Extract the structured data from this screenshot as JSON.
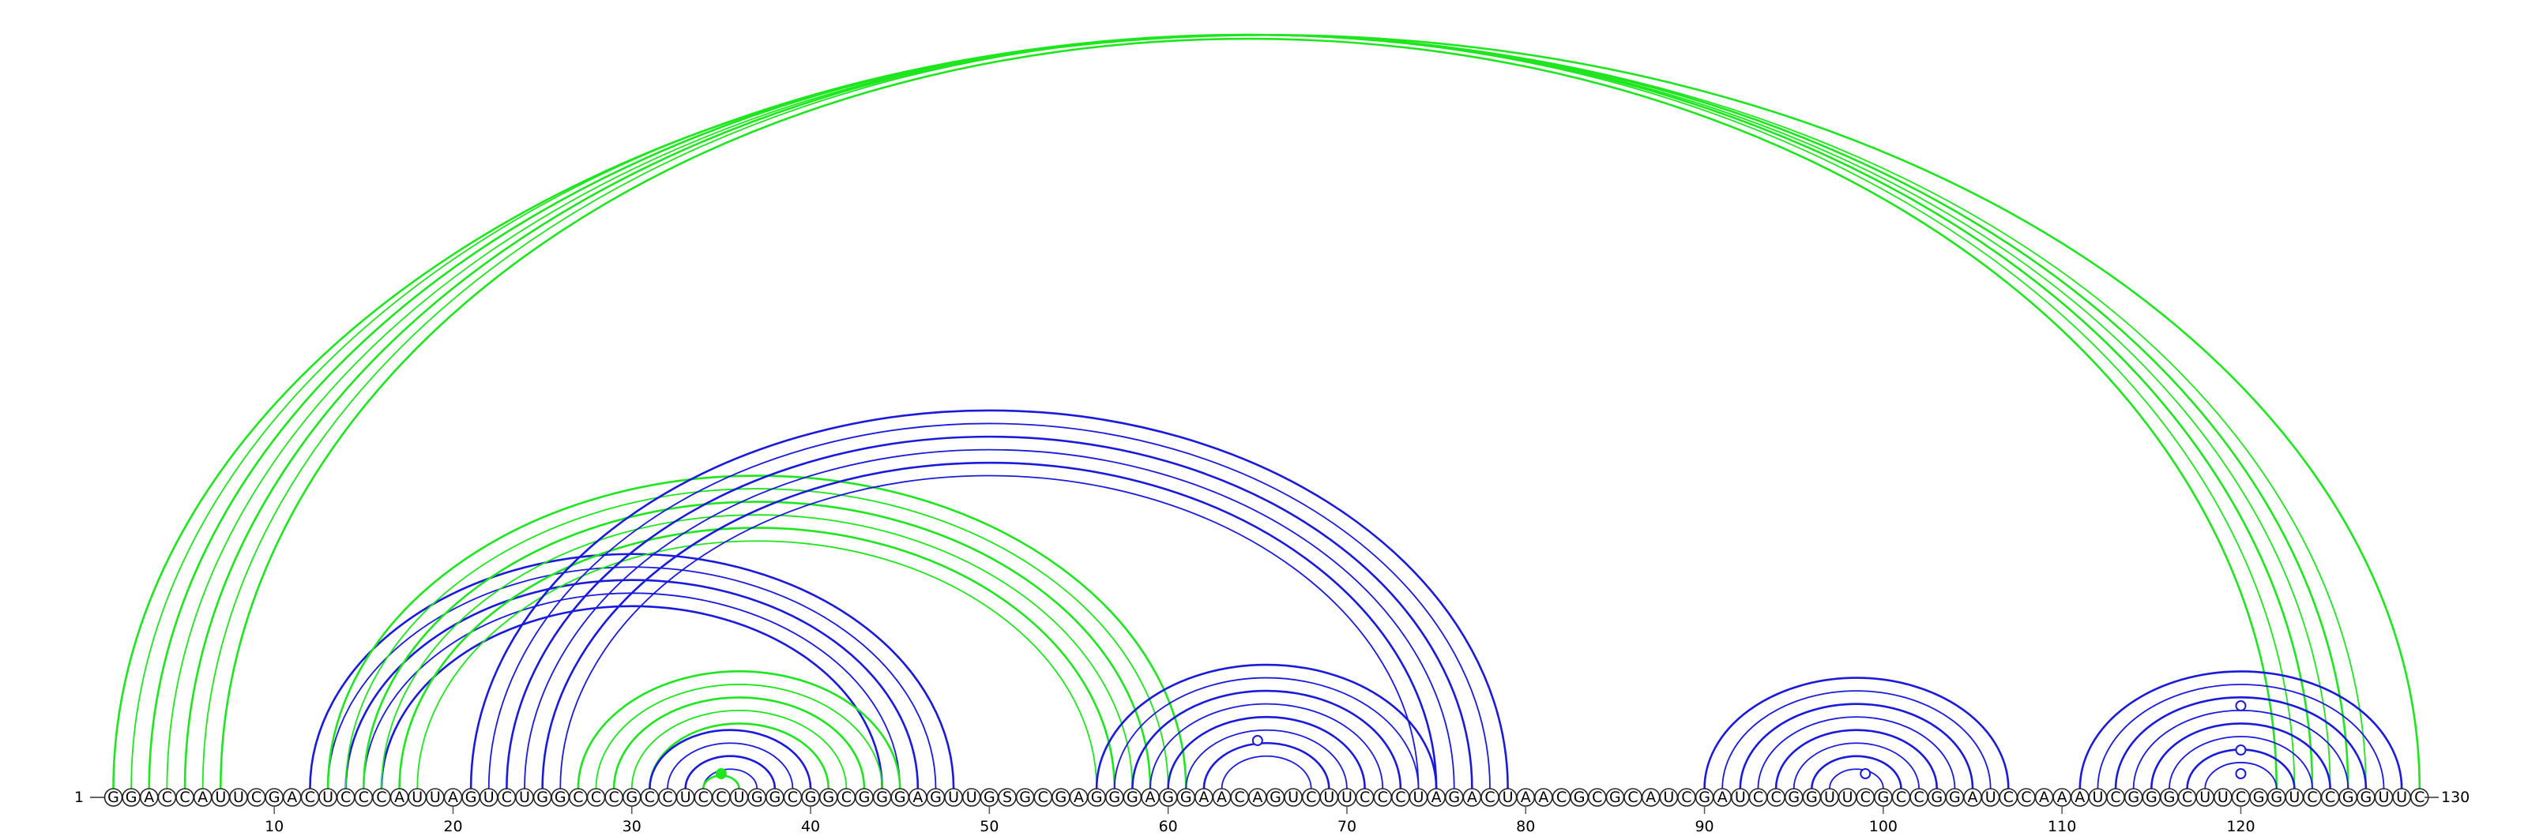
{
  "diagram": {
    "sequence": "GGACCAUUCGACUCCCAUUAGUCUGGCCCGCCUCCUGGCGGCGGGAGUUGSGCGAGGGAGGAACAGUCUUCCCUAGACUAACGCGCAUCGAUCCGGUUCGCCGGAUCCAAAUCGGGCUUCGGUCCGGUUC",
    "start_label": "1",
    "end_label": "130",
    "ticks": [
      10,
      20,
      30,
      40,
      50,
      60,
      70,
      80,
      90,
      100,
      110,
      120
    ],
    "colors": {
      "green": "#1ee61e",
      "blue": "#1a1adc"
    },
    "arc_groups": [
      {
        "color": "green",
        "pairs": [
          [
            1,
            130
          ],
          [
            2,
            127
          ],
          [
            3,
            126
          ],
          [
            4,
            125
          ],
          [
            5,
            124
          ],
          [
            6,
            123
          ],
          [
            7,
            122
          ]
        ]
      },
      {
        "color": "blue",
        "pairs": [
          [
            12,
            48
          ],
          [
            13,
            47
          ],
          [
            14,
            46
          ],
          [
            15,
            45
          ],
          [
            16,
            44
          ]
        ]
      },
      {
        "color": "green",
        "pairs": [
          [
            13,
            61
          ],
          [
            14,
            60
          ],
          [
            15,
            59
          ],
          [
            16,
            58
          ],
          [
            17,
            57
          ],
          [
            18,
            56
          ]
        ]
      },
      {
        "color": "blue",
        "pairs": [
          [
            21,
            79
          ],
          [
            22,
            78
          ],
          [
            23,
            77
          ],
          [
            24,
            76
          ],
          [
            25,
            75
          ],
          [
            26,
            74
          ]
        ]
      },
      {
        "color": "green",
        "pairs": [
          [
            27,
            45
          ],
          [
            28,
            44
          ],
          [
            29,
            43
          ],
          [
            30,
            42
          ],
          [
            31,
            41
          ]
        ]
      },
      {
        "color": "blue",
        "pairs": [
          [
            31,
            40
          ],
          [
            32,
            39
          ],
          [
            33,
            38
          ],
          [
            34,
            37
          ]
        ]
      },
      {
        "color": "green",
        "pairs": [
          [
            34,
            36
          ]
        ]
      },
      {
        "color": "blue",
        "pairs": [
          [
            56,
            75
          ],
          [
            57,
            74
          ],
          [
            58,
            73
          ],
          [
            59,
            72
          ],
          [
            60,
            71
          ],
          [
            61,
            70
          ],
          [
            62,
            69
          ],
          [
            63,
            68
          ]
        ]
      },
      {
        "color": "blue",
        "pairs": [
          [
            90,
            107
          ],
          [
            91,
            106
          ],
          [
            92,
            105
          ],
          [
            93,
            104
          ],
          [
            94,
            103
          ],
          [
            95,
            102
          ],
          [
            96,
            101
          ],
          [
            97,
            100
          ]
        ]
      },
      {
        "color": "blue",
        "pairs": [
          [
            111,
            129
          ],
          [
            112,
            128
          ],
          [
            113,
            127
          ],
          [
            114,
            126
          ],
          [
            115,
            125
          ],
          [
            116,
            124
          ],
          [
            117,
            123
          ],
          [
            118,
            122
          ]
        ]
      }
    ],
    "markers": [
      {
        "pos": 35,
        "color": "green",
        "filled": true
      },
      {
        "pos": 65,
        "color": "blue",
        "filled": false
      },
      {
        "pos": 99,
        "color": "blue",
        "filled": false
      },
      {
        "pos": 120,
        "color": "blue",
        "filled": false
      },
      {
        "pos": 120,
        "color": "blue",
        "filled": false
      },
      {
        "pos": 120,
        "color": "blue",
        "filled": false
      }
    ]
  }
}
